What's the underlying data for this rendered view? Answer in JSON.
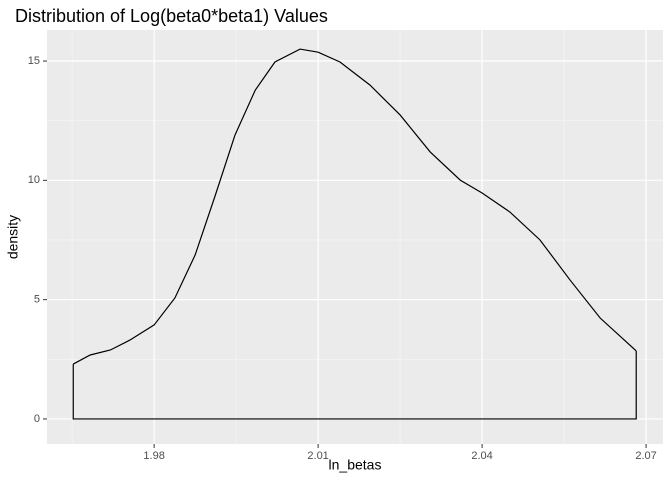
{
  "chart_data": {
    "type": "density",
    "title": "Distribution of Log(beta0*beta1) Values",
    "x_label": "ln_betas",
    "y_label": "density",
    "x": [
      1.9652,
      1.9683,
      1.972,
      1.9756,
      1.98,
      1.9838,
      1.9875,
      1.9912,
      1.9948,
      1.9985,
      2.0021,
      2.0067,
      2.01,
      2.014,
      2.0195,
      2.025,
      2.0305,
      2.036,
      2.04,
      2.0451,
      2.0506,
      2.0561,
      2.0616,
      2.0682
    ],
    "series": [
      {
        "name": "density",
        "color": "#000000",
        "values": [
          2.3,
          2.68,
          2.89,
          3.31,
          3.94,
          5.07,
          6.87,
          9.38,
          11.9,
          13.78,
          14.96,
          15.5,
          15.37,
          14.96,
          13.99,
          12.74,
          11.19,
          10.01,
          9.47,
          8.67,
          7.5,
          5.82,
          4.23,
          2.85
        ]
      }
    ],
    "xlim": [
      1.9604,
      2.0731
    ],
    "ylim": [
      -1.05,
      16.3
    ],
    "xticks": [
      1.98,
      2.01,
      2.04,
      2.07
    ],
    "yticks": [
      0,
      5,
      10,
      15
    ],
    "grid": true
  }
}
